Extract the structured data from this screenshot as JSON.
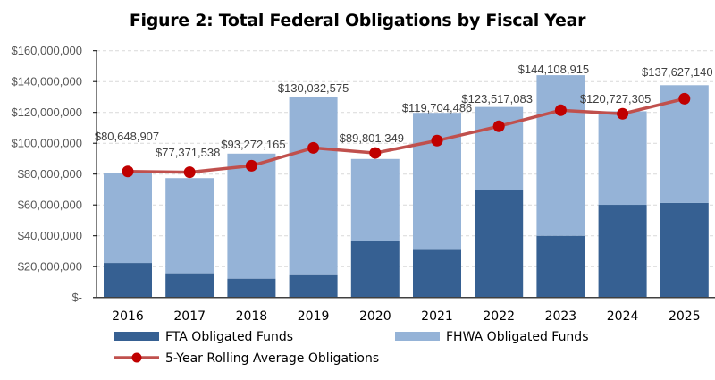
{
  "chart_data": {
    "type": "bar",
    "stacked": true,
    "title": "Figure 2:  Total Federal Obligations by Fiscal Year",
    "categories": [
      "2016",
      "2017",
      "2018",
      "2019",
      "2020",
      "2021",
      "2022",
      "2023",
      "2024",
      "2025"
    ],
    "series": [
      {
        "name": "FTA Obligated Funds",
        "type": "bar",
        "color": "#366092",
        "values": [
          22400000,
          15700000,
          12200000,
          14500000,
          36500000,
          30900000,
          69400000,
          40000000,
          60100000,
          61300000
        ]
      },
      {
        "name": "FHWA Obligated Funds",
        "type": "bar",
        "color": "#95B3D7",
        "values": [
          58248907,
          61671538,
          81072165,
          115532575,
          53301349,
          88804486,
          54117083,
          104108915,
          60627305,
          76327140
        ]
      },
      {
        "name": "5-Year Rolling Average Obligations",
        "type": "line",
        "color": "#C0504D",
        "marker_color": "#C00000",
        "values": [
          81700000,
          81200000,
          85400000,
          97000000,
          93700000,
          101700000,
          111000000,
          121400000,
          119100000,
          128900000
        ]
      }
    ],
    "total_labels": [
      "$80,648,907",
      "$77,371,538",
      "$93,272,165",
      "$130,032,575",
      "$89,801,349",
      "$119,704,486",
      "$123,517,083",
      "$144,108,915",
      "$120,727,305",
      "$137,627,140"
    ],
    "y_ticks": [
      "$-",
      "$20,000,000",
      "$40,000,000",
      "$60,000,000",
      "$80,000,000",
      "$100,000,000",
      "$120,000,000",
      "$140,000,000",
      "$160,000,000"
    ],
    "ylim": [
      0,
      160000000
    ],
    "grid": "horizontal dashed",
    "legend": "bottom"
  }
}
